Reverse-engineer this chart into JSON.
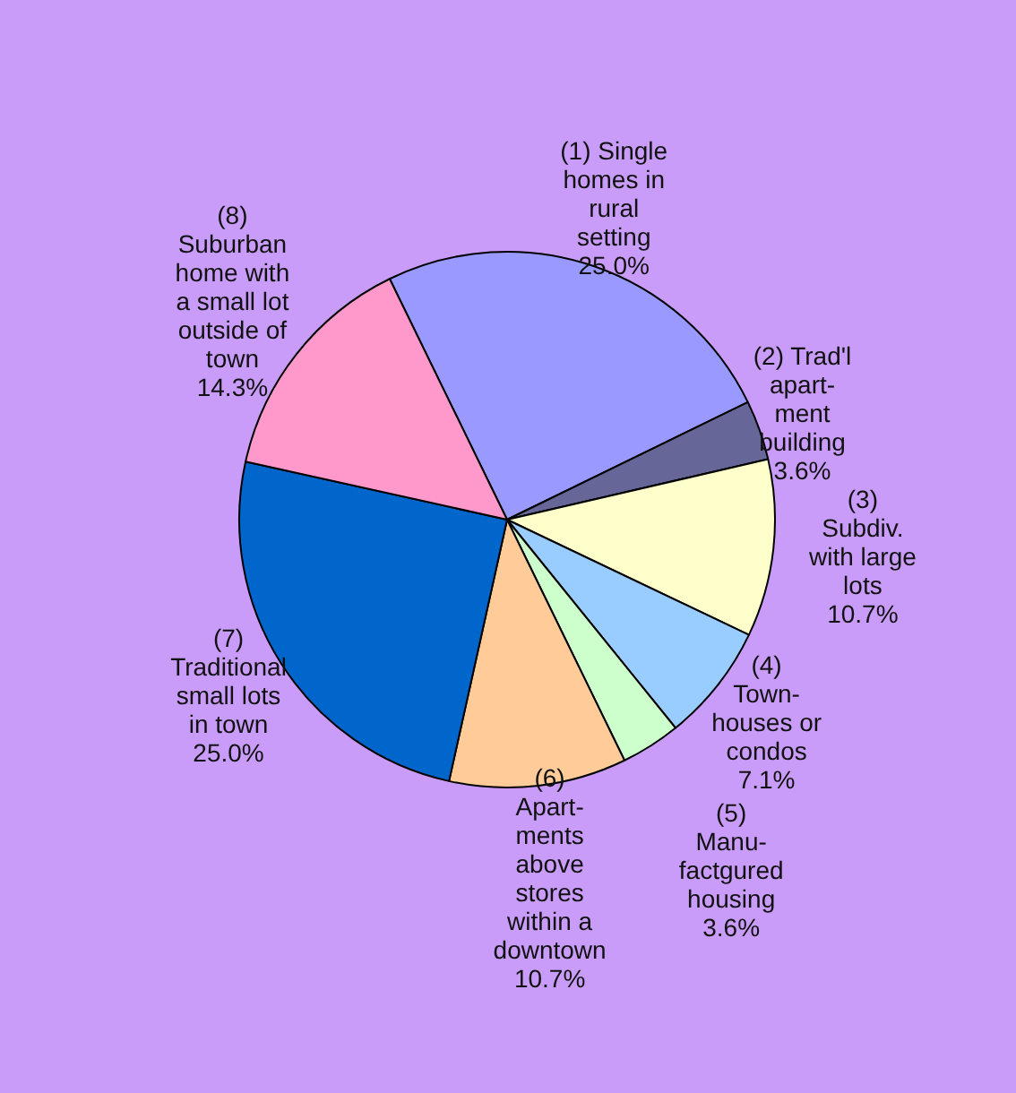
{
  "chart_data": {
    "type": "pie",
    "categories": [
      "(1) Single\nhomes in\nrural\nsetting",
      "(2) Trad'l\napart-\nment\nbuilding",
      "(3)\nSubdiv.\nwith large\nlots",
      "(4)\nTown-\nhouses or\ncondos",
      "(5)\nManu-\nfactgured\nhousing",
      "(6)\nApart-\nments\nabove\nstores\nwithin a\ndowntown",
      "(7)\nTraditional\nsmall lots\nin town",
      "(8)\nSuburban\nhome with\na small lot\noutside of\ntown"
    ],
    "values": [
      25.0,
      3.6,
      10.7,
      7.1,
      3.6,
      10.7,
      25.0,
      14.3
    ],
    "value_labels": [
      "25.0%",
      "3.6%",
      "10.7%",
      "7.1%",
      "3.6%",
      "10.7%",
      "25.0%",
      "14.3%"
    ],
    "colors": [
      "#9999ff",
      "#666699",
      "#ffffcc",
      "#99ccff",
      "#ccffcc",
      "#ffcc99",
      "#0066cc",
      "#ff99cc"
    ],
    "legend": false
  }
}
